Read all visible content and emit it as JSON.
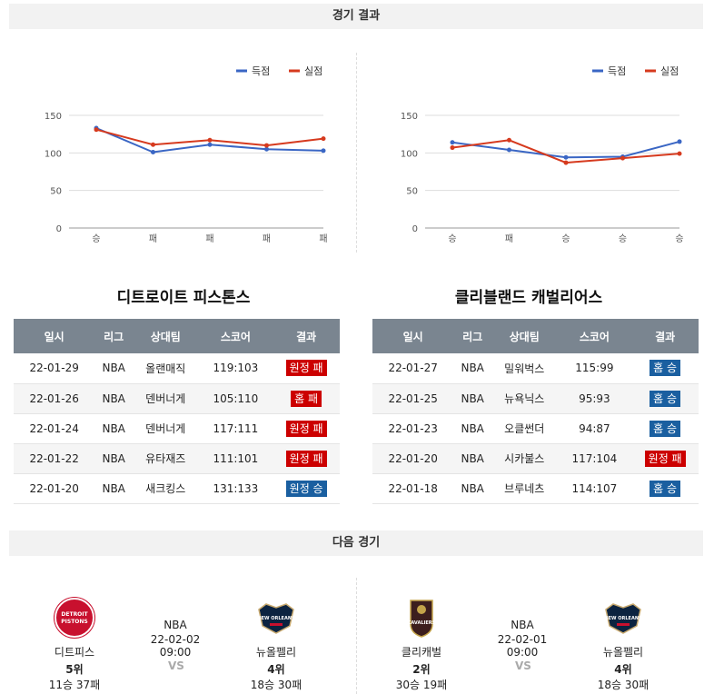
{
  "sections": {
    "results_title": "경기 결과",
    "next_title": "다음 경기"
  },
  "legend": {
    "scored": "득점",
    "conceded": "실점"
  },
  "colors": {
    "scored": "#3a66c4",
    "conceded": "#d63a1e",
    "win": "#1a5fa0",
    "loss": "#cc0000"
  },
  "charts": [
    {
      "type": "line",
      "categories": [
        "승",
        "패",
        "패",
        "패",
        "패"
      ],
      "series": [
        {
          "name": "득점",
          "values": [
            133,
            101,
            111,
            105,
            103
          ]
        },
        {
          "name": "실점",
          "values": [
            131,
            111,
            117,
            110,
            119
          ]
        }
      ],
      "ylim": [
        0,
        150
      ],
      "yticks": [
        "0",
        "50",
        "100",
        "150"
      ]
    },
    {
      "type": "line",
      "categories": [
        "승",
        "패",
        "승",
        "승",
        "승"
      ],
      "series": [
        {
          "name": "득점",
          "values": [
            114,
            104,
            94,
            95,
            115
          ]
        },
        {
          "name": "실점",
          "values": [
            107,
            117,
            87,
            93,
            99
          ]
        }
      ],
      "ylim": [
        0,
        150
      ],
      "yticks": [
        "0",
        "50",
        "100",
        "150"
      ]
    }
  ],
  "teams": [
    {
      "name": "디트로이트 피스톤스",
      "headers": [
        "일시",
        "리그",
        "상대팀",
        "스코어",
        "결과"
      ],
      "rows": [
        {
          "date": "22-01-29",
          "league": "NBA",
          "opponent": "올랜매직",
          "score": "119:103",
          "result": "원정 패",
          "win": false
        },
        {
          "date": "22-01-26",
          "league": "NBA",
          "opponent": "덴버너게",
          "score": "105:110",
          "result": "홈 패",
          "win": false
        },
        {
          "date": "22-01-24",
          "league": "NBA",
          "opponent": "덴버너게",
          "score": "117:111",
          "result": "원정 패",
          "win": false
        },
        {
          "date": "22-01-22",
          "league": "NBA",
          "opponent": "유타재즈",
          "score": "111:101",
          "result": "원정 패",
          "win": false
        },
        {
          "date": "22-01-20",
          "league": "NBA",
          "opponent": "새크킹스",
          "score": "131:133",
          "result": "원정 승",
          "win": true
        }
      ]
    },
    {
      "name": "클리블랜드 캐벌리어스",
      "headers": [
        "일시",
        "리그",
        "상대팀",
        "스코어",
        "결과"
      ],
      "rows": [
        {
          "date": "22-01-27",
          "league": "NBA",
          "opponent": "밀워벅스",
          "score": "115:99",
          "result": "홈 승",
          "win": true
        },
        {
          "date": "22-01-25",
          "league": "NBA",
          "opponent": "뉴욕닉스",
          "score": "95:93",
          "result": "홈 승",
          "win": true
        },
        {
          "date": "22-01-23",
          "league": "NBA",
          "opponent": "오클썬더",
          "score": "94:87",
          "result": "홈 승",
          "win": true
        },
        {
          "date": "22-01-20",
          "league": "NBA",
          "opponent": "시카불스",
          "score": "117:104",
          "result": "원정 패",
          "win": false
        },
        {
          "date": "22-01-18",
          "league": "NBA",
          "opponent": "브루네츠",
          "score": "114:107",
          "result": "홈 승",
          "win": true
        }
      ]
    }
  ],
  "next_games": [
    {
      "league": "NBA",
      "datetime": "22-02-02 09:00",
      "vs": "VS",
      "home": {
        "name": "디트피스",
        "rank": "5위",
        "record": "11승 37패",
        "logo_text": "DETROIT PISTONS",
        "logo_color": "#c8102e"
      },
      "away": {
        "name": "뉴올펠리",
        "rank": "4위",
        "record": "18승 30패",
        "logo_text": "NEW ORLEANS",
        "logo_color": "#0c2340"
      }
    },
    {
      "league": "NBA",
      "datetime": "22-02-01 09:00",
      "vs": "VS",
      "home": {
        "name": "클리캐벌",
        "rank": "2위",
        "record": "30승 19패",
        "logo_text": "CAVALIERS",
        "logo_color": "#6f263d"
      },
      "away": {
        "name": "뉴올펠리",
        "rank": "4위",
        "record": "18승 30패",
        "logo_text": "NEW ORLEANS",
        "logo_color": "#0c2340"
      }
    }
  ]
}
